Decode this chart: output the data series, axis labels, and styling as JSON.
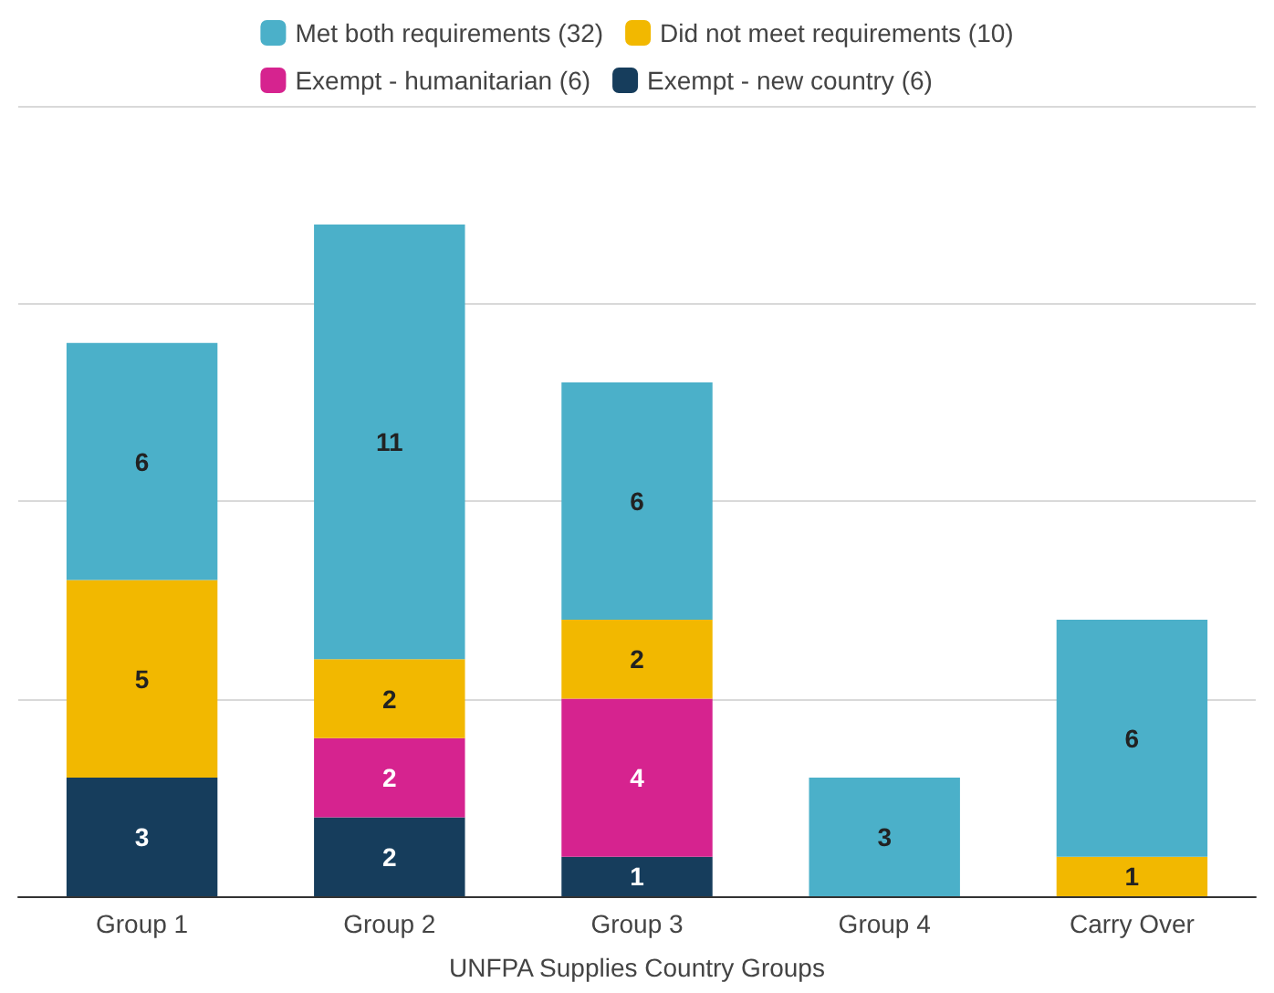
{
  "chart_data": {
    "type": "bar",
    "stacked": true,
    "xlabel": "UNFPA Supplies Country Groups",
    "categories": [
      "Group 1",
      "Group 2",
      "Group 3",
      "Group 4",
      "Carry Over"
    ],
    "series": [
      {
        "name": "Exempt - new country (6)",
        "color": "#163d5c",
        "values": [
          3,
          2,
          1,
          null,
          null
        ]
      },
      {
        "name": "Exempt - humanitarian (6)",
        "color": "#d6238f",
        "values": [
          null,
          2,
          4,
          null,
          null
        ]
      },
      {
        "name": "Did not meet requirements (10)",
        "color": "#f2b800",
        "values": [
          5,
          2,
          2,
          null,
          1
        ]
      },
      {
        "name": "Met both requirements (32)",
        "color": "#4bb0c9",
        "values": [
          6,
          11,
          6,
          3,
          6
        ]
      }
    ],
    "ylim": [
      0,
      20
    ],
    "yticks": [
      {
        "value": 0,
        "label": null
      },
      {
        "value": 5,
        "label": null
      },
      {
        "value": 10,
        "label": null
      },
      {
        "value": 15,
        "label": null
      },
      {
        "value": 20,
        "label": null
      }
    ],
    "tick_labels": "x",
    "grid": "y",
    "legend": "top",
    "data_labels": true
  }
}
